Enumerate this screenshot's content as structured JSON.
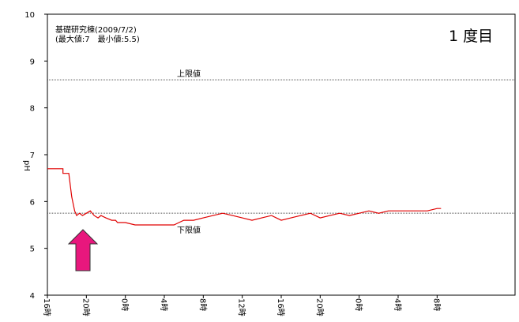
{
  "chart_data": {
    "type": "line",
    "title": "基礎研究棟(2009/7/2)",
    "subtitle": "(最大値:7　最小値:5.5)",
    "badge": "1 度目",
    "ylabel": "pH",
    "xlabel": "",
    "ylim": [
      4,
      10
    ],
    "yticks": [
      4,
      5,
      6,
      7,
      8,
      9,
      10
    ],
    "xlim": [
      16,
      64
    ],
    "xticks": [
      {
        "x": 16,
        "label": "16時"
      },
      {
        "x": 20,
        "label": "20時"
      },
      {
        "x": 24,
        "label": "0時"
      },
      {
        "x": 28,
        "label": "4時"
      },
      {
        "x": 32,
        "label": "8時"
      },
      {
        "x": 36,
        "label": "12時"
      },
      {
        "x": 40,
        "label": "16時"
      },
      {
        "x": 44,
        "label": "20時"
      },
      {
        "x": 48,
        "label": "0時"
      },
      {
        "x": 52,
        "label": "4時"
      },
      {
        "x": 56,
        "label": "8時"
      }
    ],
    "upper_limit": {
      "label": "上限値",
      "value": 8.6
    },
    "lower_limit": {
      "label": "下限値",
      "value": 5.75
    },
    "grid": false,
    "series": [
      {
        "name": "",
        "color": "#e00000",
        "points": [
          [
            16.0,
            6.7
          ],
          [
            17.0,
            6.7
          ],
          [
            17.6,
            6.7
          ],
          [
            17.6,
            6.6
          ],
          [
            18.2,
            6.6
          ],
          [
            18.5,
            6.1
          ],
          [
            18.8,
            5.8
          ],
          [
            19.0,
            5.7
          ],
          [
            19.3,
            5.75
          ],
          [
            19.6,
            5.7
          ],
          [
            20.0,
            5.75
          ],
          [
            20.4,
            5.8
          ],
          [
            20.8,
            5.7
          ],
          [
            21.2,
            5.65
          ],
          [
            21.5,
            5.7
          ],
          [
            22.0,
            5.65
          ],
          [
            22.6,
            5.6
          ],
          [
            23.0,
            5.6
          ],
          [
            23.2,
            5.55
          ],
          [
            24.0,
            5.55
          ],
          [
            25.0,
            5.5
          ],
          [
            27.0,
            5.5
          ],
          [
            29.0,
            5.5
          ],
          [
            29.5,
            5.55
          ],
          [
            30.0,
            5.6
          ],
          [
            31.0,
            5.6
          ],
          [
            32.0,
            5.65
          ],
          [
            33.0,
            5.7
          ],
          [
            34.0,
            5.75
          ],
          [
            35.0,
            5.7
          ],
          [
            36.0,
            5.65
          ],
          [
            37.0,
            5.6
          ],
          [
            38.0,
            5.65
          ],
          [
            39.0,
            5.7
          ],
          [
            40.0,
            5.6
          ],
          [
            41.0,
            5.65
          ],
          [
            42.0,
            5.7
          ],
          [
            43.0,
            5.75
          ],
          [
            44.0,
            5.65
          ],
          [
            45.0,
            5.7
          ],
          [
            46.0,
            5.75
          ],
          [
            47.0,
            5.7
          ],
          [
            48.0,
            5.75
          ],
          [
            49.0,
            5.8
          ],
          [
            50.0,
            5.75
          ],
          [
            51.0,
            5.8
          ],
          [
            52.0,
            5.8
          ],
          [
            53.0,
            5.8
          ],
          [
            54.0,
            5.8
          ],
          [
            55.0,
            5.8
          ],
          [
            56.0,
            5.85
          ],
          [
            56.4,
            5.85
          ]
        ]
      }
    ]
  },
  "colors": {
    "line": "#e00000",
    "limit_line": "#555555",
    "arrow_fill": "#e8177d",
    "arrow_stroke": "#333333",
    "axis": "#000000"
  },
  "icons": {
    "marker": "arrow-up-icon"
  }
}
